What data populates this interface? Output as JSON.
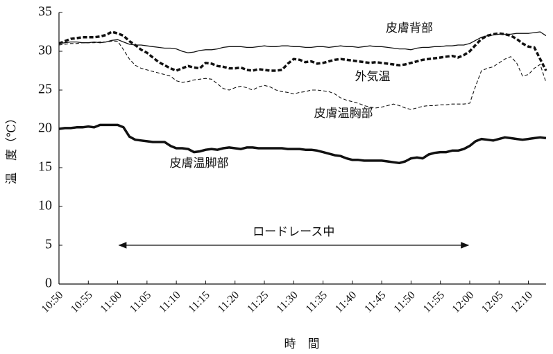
{
  "chart_data": {
    "type": "line",
    "ylabel": "温　度（℃）",
    "xlabel": "時　間",
    "x": [
      "10:50",
      "10:51",
      "10:52",
      "10:53",
      "10:54",
      "10:55",
      "10:56",
      "10:57",
      "10:58",
      "10:59",
      "11:00",
      "11:01",
      "11:02",
      "11:03",
      "11:04",
      "11:05",
      "11:06",
      "11:07",
      "11:08",
      "11:09",
      "11:10",
      "11:11",
      "11:12",
      "11:13",
      "11:14",
      "11:15",
      "11:16",
      "11:17",
      "11:18",
      "11:19",
      "11:20",
      "11:21",
      "11:22",
      "11:23",
      "11:24",
      "11:25",
      "11:26",
      "11:27",
      "11:28",
      "11:29",
      "11:30",
      "11:31",
      "11:32",
      "11:33",
      "11:34",
      "11:35",
      "11:36",
      "11:37",
      "11:38",
      "11:39",
      "11:40",
      "11:41",
      "11:42",
      "11:43",
      "11:44",
      "11:45",
      "11:46",
      "11:47",
      "11:48",
      "11:49",
      "11:50",
      "11:51",
      "11:52",
      "11:53",
      "11:54",
      "11:55",
      "11:56",
      "11:57",
      "11:58",
      "11:59",
      "12:00",
      "12:01",
      "12:02",
      "12:03",
      "12:04",
      "12:05",
      "12:06",
      "12:07",
      "12:08",
      "12:09",
      "12:10",
      "12:11",
      "12:12",
      "12:13"
    ],
    "series": [
      {
        "name": "皮膚背部",
        "color": "#111111",
        "style": "solid",
        "line_width": 1.3,
        "values": [
          31.0,
          31.1,
          31.2,
          31.2,
          31.1,
          31.1,
          31.2,
          31.1,
          31.2,
          31.4,
          31.5,
          31.2,
          30.9,
          30.8,
          30.8,
          30.7,
          30.6,
          30.5,
          30.4,
          30.4,
          30.3,
          30.0,
          29.8,
          29.9,
          30.1,
          30.2,
          30.2,
          30.3,
          30.5,
          30.6,
          30.6,
          30.6,
          30.5,
          30.5,
          30.6,
          30.7,
          30.6,
          30.6,
          30.7,
          30.7,
          30.6,
          30.6,
          30.5,
          30.5,
          30.6,
          30.6,
          30.5,
          30.6,
          30.7,
          30.6,
          30.6,
          30.5,
          30.6,
          30.7,
          30.6,
          30.6,
          30.5,
          30.4,
          30.3,
          30.3,
          30.2,
          30.4,
          30.5,
          30.5,
          30.6,
          30.6,
          30.7,
          30.7,
          30.8,
          30.8,
          31.0,
          31.4,
          31.8,
          32.0,
          32.1,
          32.2,
          32.2,
          32.2,
          32.3,
          32.3,
          32.3,
          32.4,
          32.5,
          32.0
        ]
      },
      {
        "name": "外気温",
        "color": "#111111",
        "style": "dashed-thick",
        "line_width": 3.5,
        "values": [
          31.0,
          31.3,
          31.6,
          31.7,
          31.8,
          31.8,
          31.8,
          31.9,
          32.1,
          32.5,
          32.3,
          32.0,
          31.3,
          30.8,
          30.2,
          29.8,
          29.2,
          28.6,
          28.2,
          27.8,
          27.5,
          27.8,
          28.1,
          27.9,
          27.8,
          28.5,
          28.4,
          28.1,
          28.0,
          27.8,
          27.8,
          27.9,
          27.6,
          27.5,
          27.7,
          27.6,
          27.5,
          27.5,
          27.6,
          28.4,
          29.0,
          28.9,
          28.6,
          28.7,
          28.4,
          28.5,
          28.7,
          28.9,
          29.0,
          28.9,
          28.8,
          28.7,
          28.6,
          28.5,
          28.6,
          28.5,
          28.4,
          28.3,
          28.2,
          28.3,
          28.5,
          28.7,
          28.9,
          29.0,
          29.1,
          29.2,
          29.3,
          29.4,
          29.2,
          29.5,
          30.0,
          30.8,
          31.6,
          32.0,
          32.2,
          32.3,
          32.2,
          32.0,
          31.6,
          31.0,
          30.6,
          30.5,
          29.0,
          27.5
        ]
      },
      {
        "name": "皮膚温胸部",
        "color": "#111111",
        "style": "dashed-thin",
        "line_width": 1.1,
        "values": [
          30.8,
          30.9,
          31.0,
          31.0,
          31.1,
          31.1,
          31.1,
          31.2,
          31.2,
          31.3,
          31.3,
          30.2,
          29.0,
          28.2,
          27.8,
          27.6,
          27.4,
          27.2,
          27.0,
          26.8,
          26.2,
          26.0,
          26.1,
          26.3,
          26.4,
          26.5,
          26.4,
          25.8,
          25.2,
          25.0,
          25.3,
          25.5,
          25.3,
          25.0,
          25.4,
          25.6,
          25.4,
          25.0,
          24.8,
          24.7,
          24.5,
          24.7,
          24.8,
          25.0,
          25.0,
          24.9,
          24.8,
          24.5,
          24.0,
          23.7,
          23.5,
          23.3,
          23.0,
          22.8,
          22.7,
          22.8,
          23.0,
          23.2,
          23.0,
          22.7,
          22.5,
          22.7,
          22.9,
          23.0,
          23.0,
          23.1,
          23.1,
          23.2,
          23.2,
          23.2,
          23.3,
          25.5,
          27.5,
          27.8,
          28.0,
          28.5,
          29.0,
          29.3,
          28.5,
          26.8,
          27.0,
          27.8,
          28.3,
          26.0
        ]
      },
      {
        "name": "皮膚温脚部",
        "color": "#111111",
        "style": "solid",
        "line_width": 3.5,
        "values": [
          20.0,
          20.1,
          20.1,
          20.2,
          20.2,
          20.3,
          20.2,
          20.5,
          20.5,
          20.5,
          20.5,
          20.2,
          19.0,
          18.6,
          18.5,
          18.4,
          18.3,
          18.3,
          18.3,
          17.8,
          17.5,
          17.5,
          17.4,
          17.0,
          17.1,
          17.3,
          17.4,
          17.3,
          17.5,
          17.6,
          17.5,
          17.4,
          17.6,
          17.6,
          17.5,
          17.5,
          17.5,
          17.5,
          17.5,
          17.4,
          17.4,
          17.4,
          17.3,
          17.3,
          17.2,
          17.0,
          16.8,
          16.6,
          16.5,
          16.2,
          16.0,
          16.0,
          15.9,
          15.9,
          15.9,
          15.9,
          15.8,
          15.7,
          15.6,
          15.8,
          16.2,
          16.3,
          16.2,
          16.7,
          16.9,
          17.0,
          17.0,
          17.2,
          17.2,
          17.4,
          17.8,
          18.4,
          18.7,
          18.6,
          18.5,
          18.7,
          18.9,
          18.8,
          18.7,
          18.6,
          18.7,
          18.8,
          18.9,
          18.8
        ]
      }
    ],
    "xlim": [
      "10:50",
      "12:13"
    ],
    "xticks": [
      "10:50",
      "10:55",
      "11:00",
      "11:05",
      "11:10",
      "11:15",
      "11:20",
      "11:25",
      "11:30",
      "11:35",
      "11:40",
      "11:45",
      "11:50",
      "11:55",
      "12:00",
      "12:05",
      "12:10"
    ],
    "ylim": [
      0,
      35
    ],
    "yticks": [
      0,
      5,
      10,
      15,
      20,
      25,
      30,
      35
    ],
    "grid": false,
    "annotations": [
      {
        "text": "ロードレース中",
        "from": "11:00",
        "to": "12:00",
        "y": 5
      }
    ]
  }
}
